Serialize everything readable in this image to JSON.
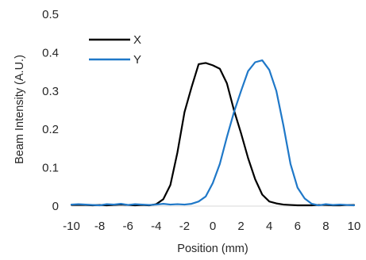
{
  "chart_data": {
    "type": "line",
    "title": "",
    "xlabel": "Position (mm)",
    "ylabel": "Beam Intensity (A.U.)",
    "xlim": [
      -10,
      10
    ],
    "ylim": [
      0,
      0.5
    ],
    "x_ticks": [
      -10,
      -8,
      -6,
      -4,
      -2,
      0,
      2,
      4,
      6,
      8,
      10
    ],
    "x_tick_labels": [
      "-10",
      "-8",
      "-6",
      "-4",
      "-2",
      "0",
      "2",
      "4",
      "6",
      "8",
      "10"
    ],
    "y_ticks": [
      0,
      0.1,
      0.2,
      0.3,
      0.4,
      0.5
    ],
    "y_tick_labels": [
      "0",
      "0.1",
      "0.2",
      "0.3",
      "0.4",
      "0.5"
    ],
    "grid": false,
    "legend_position": "top-left",
    "series": [
      {
        "name": "X",
        "color": "#000000",
        "points": [
          [
            -10,
            0.003
          ],
          [
            -9.5,
            0.003
          ],
          [
            -9,
            0.003
          ],
          [
            -8.5,
            0.002
          ],
          [
            -8,
            0.003
          ],
          [
            -7.5,
            0.002
          ],
          [
            -7,
            0.003
          ],
          [
            -6.5,
            0.004
          ],
          [
            -6,
            0.003
          ],
          [
            -5.5,
            0.002
          ],
          [
            -5,
            0.003
          ],
          [
            -4.5,
            0.002
          ],
          [
            -4,
            0.005
          ],
          [
            -3.5,
            0.018
          ],
          [
            -3,
            0.055
          ],
          [
            -2.5,
            0.14
          ],
          [
            -2,
            0.245
          ],
          [
            -1.5,
            0.31
          ],
          [
            -1,
            0.37
          ],
          [
            -0.5,
            0.373
          ],
          [
            0,
            0.367
          ],
          [
            0.5,
            0.358
          ],
          [
            1,
            0.32
          ],
          [
            1.5,
            0.25
          ],
          [
            2,
            0.19
          ],
          [
            2.5,
            0.125
          ],
          [
            3,
            0.07
          ],
          [
            3.5,
            0.03
          ],
          [
            4,
            0.012
          ],
          [
            4.5,
            0.007
          ],
          [
            5,
            0.004
          ],
          [
            5.5,
            0.003
          ],
          [
            6,
            0.002
          ],
          [
            6.5,
            0.002
          ],
          [
            7,
            0.002
          ],
          [
            7.5,
            0.003
          ],
          [
            8,
            0.003
          ],
          [
            8.5,
            0.002
          ],
          [
            9,
            0.002
          ],
          [
            9.5,
            0.003
          ],
          [
            10,
            0.003
          ]
        ]
      },
      {
        "name": "Y",
        "color": "#1f78c8",
        "points": [
          [
            -10,
            0.004
          ],
          [
            -9.5,
            0.005
          ],
          [
            -9,
            0.004
          ],
          [
            -8.5,
            0.003
          ],
          [
            -8,
            0.002
          ],
          [
            -7.5,
            0.005
          ],
          [
            -7,
            0.004
          ],
          [
            -6.5,
            0.006
          ],
          [
            -6,
            0.003
          ],
          [
            -5.5,
            0.005
          ],
          [
            -5,
            0.004
          ],
          [
            -4.5,
            0.003
          ],
          [
            -4,
            0.004
          ],
          [
            -3.5,
            0.006
          ],
          [
            -3,
            0.004
          ],
          [
            -2.5,
            0.005
          ],
          [
            -2,
            0.004
          ],
          [
            -1.5,
            0.006
          ],
          [
            -1,
            0.012
          ],
          [
            -0.5,
            0.025
          ],
          [
            0,
            0.06
          ],
          [
            0.5,
            0.11
          ],
          [
            1,
            0.18
          ],
          [
            1.5,
            0.245
          ],
          [
            2,
            0.3
          ],
          [
            2.5,
            0.352
          ],
          [
            3,
            0.375
          ],
          [
            3.5,
            0.38
          ],
          [
            4,
            0.355
          ],
          [
            4.5,
            0.3
          ],
          [
            5,
            0.21
          ],
          [
            5.5,
            0.11
          ],
          [
            6,
            0.048
          ],
          [
            6.5,
            0.02
          ],
          [
            7,
            0.006
          ],
          [
            7.5,
            0.002
          ],
          [
            8,
            0.005
          ],
          [
            8.5,
            0.003
          ],
          [
            9,
            0.004
          ],
          [
            9.5,
            0.003
          ],
          [
            10,
            0.002
          ]
        ]
      }
    ]
  }
}
